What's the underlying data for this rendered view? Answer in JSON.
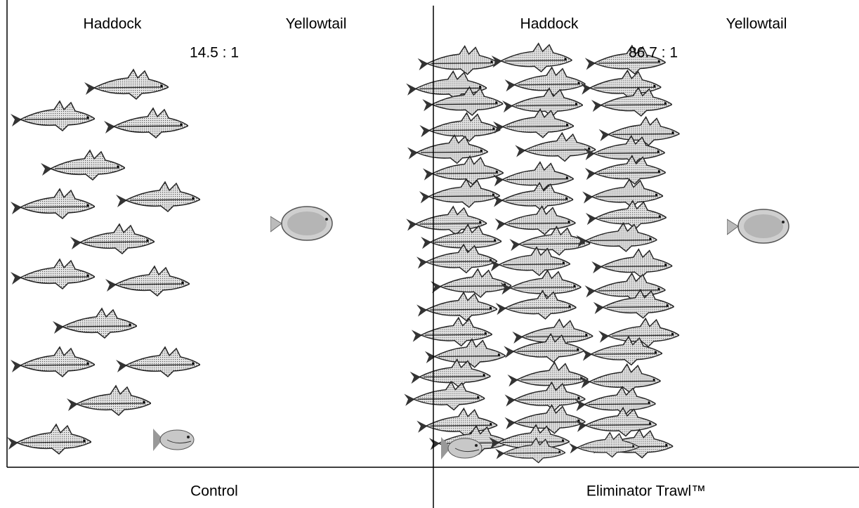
{
  "panels": [
    {
      "species": [
        "Haddock",
        "Yellowtail"
      ],
      "ratio": "14.5 : 1",
      "caption": "Control"
    },
    {
      "species": [
        "Haddock",
        "Yellowtail"
      ],
      "ratio": "86.7 : 1",
      "caption": "Eliminator Trawl™"
    }
  ]
}
